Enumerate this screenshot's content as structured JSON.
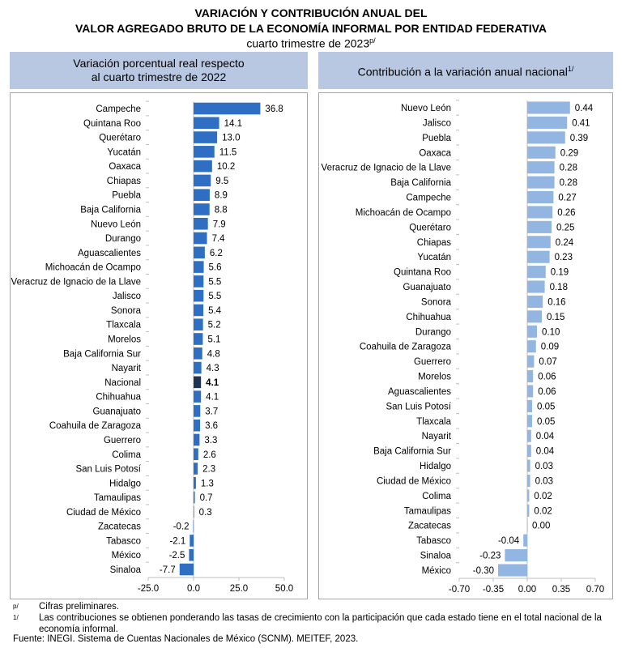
{
  "title": {
    "line1": "VARIACIÓN Y CONTRIBUCIÓN ANUAL DEL",
    "line2": "VALOR AGREGADO BRUTO DE LA ECONOMÍA INFORMAL POR ENTIDAD FEDERATIVA",
    "line3": "cuarto trimestre de 2023",
    "line3_sup": "p/"
  },
  "chart_data": [
    {
      "type": "bar",
      "orientation": "horizontal",
      "title": "Variación porcentual real respecto al cuarto trimestre de 2022",
      "title_line1": "Variación porcentual real respecto",
      "title_line2": "al cuarto trimestre de 2022",
      "categories": [
        "Campeche",
        "Quintana Roo",
        "Querétaro",
        "Yucatán",
        "Oaxaca",
        "Chiapas",
        "Puebla",
        "Baja California",
        "Nuevo León",
        "Durango",
        "Aguascalientes",
        "Michoacán de Ocampo",
        "Veracruz de Ignacio de la Llave",
        "Jalisco",
        "Sonora",
        "Tlaxcala",
        "Morelos",
        "Baja California Sur",
        "Nayarit",
        "Nacional",
        "Chihuahua",
        "Guanajuato",
        "Coahuila de Zaragoza",
        "Guerrero",
        "Colima",
        "San Luis Potosí",
        "Hidalgo",
        "Tamaulipas",
        "Ciudad de México",
        "Zacatecas",
        "Tabasco",
        "México",
        "Sinaloa"
      ],
      "values": [
        36.8,
        14.1,
        13.0,
        11.5,
        10.2,
        9.5,
        8.9,
        8.8,
        7.9,
        7.4,
        6.2,
        5.6,
        5.5,
        5.5,
        5.4,
        5.2,
        5.1,
        4.8,
        4.3,
        4.1,
        4.1,
        3.7,
        3.6,
        3.3,
        2.6,
        2.3,
        1.3,
        0.7,
        0.3,
        -0.2,
        -2.1,
        -2.5,
        -7.7
      ],
      "labels": [
        "36.8",
        "14.1",
        "13.0",
        "11.5",
        "10.2",
        "9.5",
        "8.9",
        "8.8",
        "7.9",
        "7.4",
        "6.2",
        "5.6",
        "5.5",
        "5.5",
        "5.4",
        "5.2",
        "5.1",
        "4.8",
        "4.3",
        "4.1",
        "4.1",
        "3.7",
        "3.6",
        "3.3",
        "2.6",
        "2.3",
        "1.3",
        "0.7",
        "0.3",
        "-0.2",
        "-2.1",
        "-2.5",
        "-7.7"
      ],
      "highlight": "Nacional",
      "xlim": [
        -25,
        50
      ],
      "xticks": [
        "-25.0",
        "0.0",
        "25.0",
        "50.0"
      ],
      "xtick_values": [
        -25,
        0,
        25,
        50
      ],
      "bar_color": "#2e6fc4",
      "highlight_color": "#1f3352",
      "grid": false
    },
    {
      "type": "bar",
      "orientation": "horizontal",
      "title": "Contribución a la variación anual nacional",
      "title_sup": "1/",
      "categories": [
        "Nuevo León",
        "Jalisco",
        "Puebla",
        "Oaxaca",
        "Veracruz de Ignacio de la Llave",
        "Baja California",
        "Campeche",
        "Michoacán de Ocampo",
        "Querétaro",
        "Chiapas",
        "Yucatán",
        "Quintana Roo",
        "Guanajuato",
        "Sonora",
        "Chihuahua",
        "Durango",
        "Coahuila de Zaragoza",
        "Guerrero",
        "Morelos",
        "Aguascalientes",
        "San Luis Potosí",
        "Tlaxcala",
        "Nayarit",
        "Baja California Sur",
        "Hidalgo",
        "Ciudad de México",
        "Colima",
        "Tamaulipas",
        "Zacatecas",
        "Tabasco",
        "Sinaloa",
        "México"
      ],
      "values": [
        0.44,
        0.41,
        0.39,
        0.29,
        0.28,
        0.28,
        0.27,
        0.26,
        0.25,
        0.24,
        0.23,
        0.19,
        0.18,
        0.16,
        0.15,
        0.1,
        0.09,
        0.07,
        0.06,
        0.06,
        0.05,
        0.05,
        0.04,
        0.04,
        0.03,
        0.03,
        0.02,
        0.02,
        0.0,
        -0.04,
        -0.23,
        -0.3
      ],
      "labels": [
        "0.44",
        "0.41",
        "0.39",
        "0.29",
        "0.28",
        "0.28",
        "0.27",
        "0.26",
        "0.25",
        "0.24",
        "0.23",
        "0.19",
        "0.18",
        "0.16",
        "0.15",
        "0.10",
        "0.09",
        "0.07",
        "0.06",
        "0.06",
        "0.05",
        "0.05",
        "0.04",
        "0.04",
        "0.03",
        "0.03",
        "0.02",
        "0.02",
        "0.00",
        "-0.04",
        "-0.23",
        "-0.30"
      ],
      "xlim": [
        -0.7,
        0.7
      ],
      "xticks": [
        "-0.70",
        "-0.35",
        "0.00",
        "0.35",
        "0.70"
      ],
      "xtick_values": [
        -0.7,
        -0.35,
        0,
        0.35,
        0.7
      ],
      "bar_color": "#93b5e1",
      "grid": false
    }
  ],
  "notes": [
    {
      "key": "p/",
      "text": "Cifras preliminares."
    },
    {
      "key": "1/",
      "text": "Las contribuciones se obtienen ponderando las tasas de crecimiento con la participación que cada estado tiene en el total nacional de la economía informal."
    }
  ],
  "source": "Fuente: INEGI. Sistema de Cuentas Nacionales de México (SCNM). MEITEF, 2023."
}
